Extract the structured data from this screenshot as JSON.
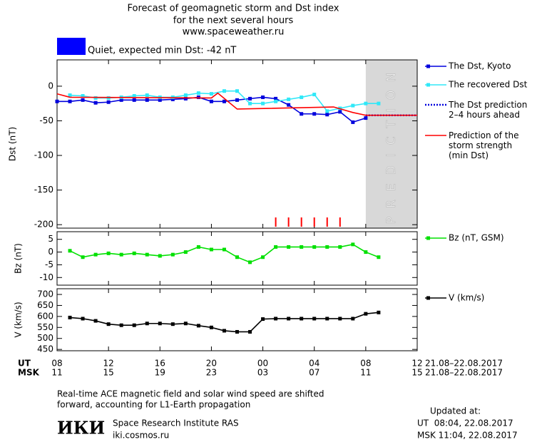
{
  "header": {
    "title": [
      "Forecast of geomagnetic storm and Dst index",
      "for the next several hours",
      "www.spaceweather.ru"
    ]
  },
  "status": {
    "text": "Quiet, expected min Dst: -42 nT",
    "color": "#0000ff"
  },
  "chart_data": [
    {
      "type": "line",
      "ylabel": "Dst (nT)",
      "xlim": [
        0,
        28
      ],
      "ylim": [
        -205,
        38
      ],
      "yticks": [
        0,
        -50,
        -100,
        -150,
        -200
      ],
      "prediction_region": {
        "xlim": [
          24,
          28
        ],
        "label": "PREDICTION",
        "color": "#d8d8d8"
      },
      "storm_markers": {
        "x": [
          17,
          18,
          19,
          20,
          21,
          22
        ],
        "color": "#ff0000"
      },
      "series": [
        {
          "name": "The Dst, Kyoto",
          "color": "#0000dd",
          "marker": "square",
          "linestyle": "solid",
          "x": [
            0,
            1,
            2,
            3,
            4,
            5,
            6,
            7,
            8,
            9,
            10,
            11,
            12,
            13,
            14,
            15,
            16,
            17,
            18,
            19,
            20,
            21,
            22,
            23,
            24
          ],
          "values": [
            -22,
            -22,
            -20,
            -24,
            -23,
            -20,
            -20,
            -20,
            -20,
            -19,
            -18,
            -16,
            -22,
            -22,
            -20,
            -18,
            -16,
            -18,
            -27,
            -40,
            -40,
            -41,
            -37,
            -52,
            -46
          ]
        },
        {
          "name": "The recovered Dst",
          "color": "#30e8f8",
          "marker": "square",
          "linestyle": "solid",
          "x": [
            1,
            2,
            3,
            4,
            5,
            6,
            7,
            8,
            9,
            10,
            11,
            12,
            13,
            14,
            15,
            16,
            17,
            18,
            19,
            20,
            21,
            22,
            23,
            24,
            25
          ],
          "values": [
            -13,
            -14,
            -17,
            -17,
            -16,
            -14,
            -13,
            -16,
            -16,
            -13,
            -10,
            -11,
            -7,
            -7,
            -25,
            -25,
            -22,
            -19,
            -16,
            -12,
            -36,
            -32,
            -28,
            -25,
            -25
          ]
        },
        {
          "name": "The Dst prediction\n2–4 hours ahead",
          "color": "#0000dd",
          "marker": "none",
          "linestyle": "dotted",
          "x": [
            24,
            28
          ],
          "values": [
            -42,
            -42
          ]
        },
        {
          "name": "Prediction of the\nstorm strength\n(min Dst)",
          "color": "#ff0000",
          "marker": "none",
          "linestyle": "solid",
          "x": [
            0,
            1,
            12,
            12.5,
            14,
            21.5,
            23,
            24,
            28
          ],
          "values": [
            -11,
            -16,
            -17,
            -10,
            -33,
            -30,
            -38,
            -42,
            -42
          ]
        }
      ]
    },
    {
      "type": "line",
      "ylabel": "Bz (nT)",
      "xlim": [
        0,
        28
      ],
      "ylim": [
        -13,
        8
      ],
      "yticks": [
        5,
        0,
        -5,
        -10
      ],
      "series": [
        {
          "name": "Bz (nT, GSM)",
          "color": "#00e000",
          "marker": "square",
          "linestyle": "solid",
          "x": [
            1,
            2,
            3,
            4,
            5,
            6,
            7,
            8,
            9,
            10,
            11,
            12,
            13,
            14,
            15,
            16,
            17,
            18,
            19,
            20,
            21,
            22,
            23,
            24,
            25
          ],
          "values": [
            0.5,
            -2,
            -1,
            -0.5,
            -1,
            -0.5,
            -1,
            -1.5,
            -1,
            0,
            2,
            1,
            1,
            -2,
            -4,
            -2,
            2,
            2,
            2,
            2,
            2,
            2,
            3,
            0,
            -2
          ]
        }
      ]
    },
    {
      "type": "line",
      "ylabel": "V (km/s)",
      "xlim": [
        0,
        28
      ],
      "ylim": [
        444,
        726
      ],
      "yticks": [
        700,
        650,
        600,
        550,
        500,
        450
      ],
      "xticks": [
        {
          "value": 0,
          "label": "08"
        },
        {
          "value": 4,
          "label": "12"
        },
        {
          "value": 8,
          "label": "16"
        },
        {
          "value": 12,
          "label": "20"
        },
        {
          "value": 16,
          "label": "00"
        },
        {
          "value": 20,
          "label": "04"
        },
        {
          "value": 24,
          "label": "08"
        },
        {
          "value": 28,
          "label": "12"
        }
      ],
      "xticks_msk": [
        "11",
        "15",
        "19",
        "23",
        "03",
        "07",
        "11",
        "15"
      ],
      "series": [
        {
          "name": "V (km/s)",
          "color": "#000000",
          "marker": "square",
          "linestyle": "solid",
          "x": [
            1,
            2,
            3,
            4,
            5,
            6,
            7,
            8,
            9,
            10,
            11,
            12,
            13,
            14,
            15,
            16,
            17,
            18,
            19,
            20,
            21,
            22,
            23,
            24,
            25
          ],
          "values": [
            595,
            590,
            580,
            565,
            560,
            560,
            568,
            568,
            565,
            568,
            558,
            550,
            535,
            530,
            530,
            588,
            590,
            590,
            590,
            590,
            590,
            590,
            590,
            612,
            618
          ]
        }
      ]
    }
  ],
  "time_axis": {
    "row_labels": [
      "UT",
      "MSK"
    ],
    "date_range": [
      "21.08–22.08.2017",
      "21.08–22.08.2017"
    ]
  },
  "note": [
    "Real-time ACE magnetic field and solar wind speed are shifted",
    "forward, accounting for L1-Earth propagation"
  ],
  "institute": {
    "logo": "ИКИ",
    "name": "Space Research Institute RAS",
    "url": "iki.cosmos.ru"
  },
  "updated": {
    "label": "Updated at:",
    "ut": "UT  08:04, 22.08.2017",
    "msk": "MSK 11:04, 22.08.2017"
  }
}
